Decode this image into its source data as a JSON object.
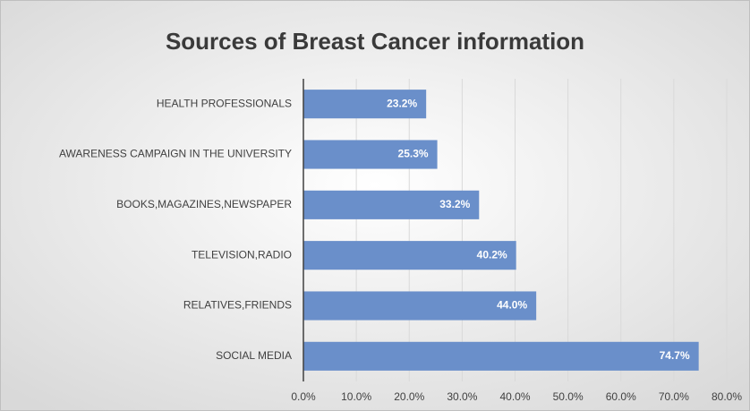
{
  "chart_data": {
    "type": "bar",
    "orientation": "horizontal",
    "title": "Sources of Breast Cancer information",
    "categories": [
      "HEALTH PROFESSIONALS",
      "AWARENESS CAMPAIGN IN THE UNIVERSITY",
      "BOOKS,MAGAZINES,NEWSPAPER",
      "TELEVISION,RADIO",
      "RELATIVES,FRIENDS",
      "SOCIAL MEDIA"
    ],
    "values": [
      23.2,
      25.3,
      33.2,
      40.2,
      44.0,
      74.7
    ],
    "value_labels": [
      "23.2%",
      "25.3%",
      "33.2%",
      "40.2%",
      "44.0%",
      "74.7%"
    ],
    "color": "#6a8fca",
    "xlim": [
      0,
      80
    ],
    "xticks": [
      {
        "value": 0,
        "label": "0.0%"
      },
      {
        "value": 10,
        "label": "10.0%"
      },
      {
        "value": 20,
        "label": "20.0%"
      },
      {
        "value": 30,
        "label": "30.0%"
      },
      {
        "value": 40,
        "label": "40.0%"
      },
      {
        "value": 50,
        "label": "50.0%"
      },
      {
        "value": 60,
        "label": "60.0%"
      },
      {
        "value": 70,
        "label": "70.0%"
      },
      {
        "value": 80,
        "label": "80.0%"
      }
    ],
    "grid": true
  }
}
